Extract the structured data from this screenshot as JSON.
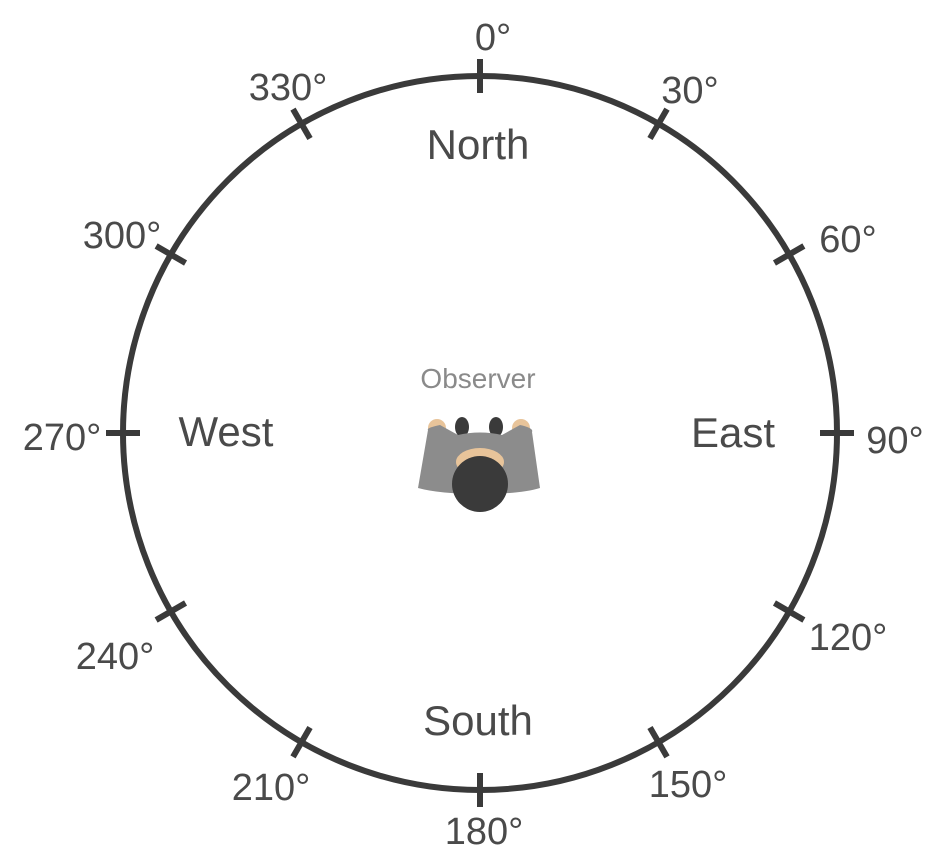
{
  "compass": {
    "degree_labels": [
      "0°",
      "30°",
      "60°",
      "90°",
      "120°",
      "150°",
      "180°",
      "210°",
      "240°",
      "270°",
      "300°",
      "330°"
    ],
    "directions": {
      "north": "North",
      "east": "East",
      "south": "South",
      "west": "West"
    },
    "observer_label": "Observer",
    "ring_color": "#3a3a3a",
    "text_color": "#4a4a4a"
  },
  "observer_figure": {
    "icon": "observer-top-down-icon",
    "shirt_color": "#8c8c8c",
    "hair_color": "#3a3a3a",
    "skin_color": "#e8c49a"
  }
}
